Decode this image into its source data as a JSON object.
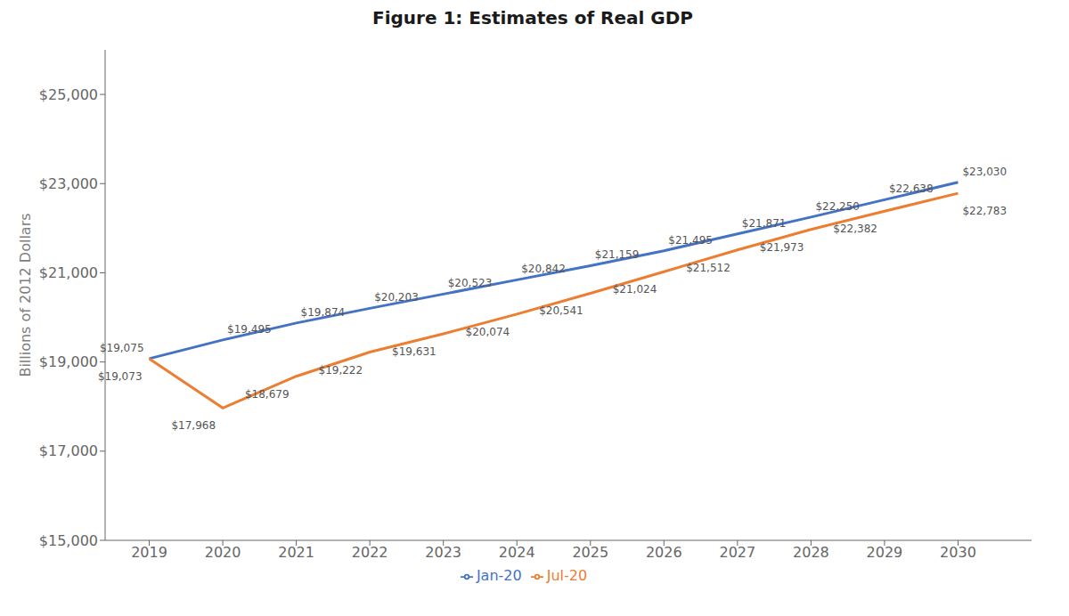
{
  "chart_data": {
    "type": "line",
    "title": "Figure 1: Estimates of Real GDP",
    "ylabel": "Billions of 2012 Dollars",
    "x": [
      2019,
      2020,
      2021,
      2022,
      2023,
      2024,
      2025,
      2026,
      2027,
      2028,
      2029,
      2030
    ],
    "xlim": [
      2018.4,
      2031
    ],
    "xticks": [
      2019,
      2020,
      2021,
      2022,
      2023,
      2024,
      2025,
      2026,
      2027,
      2028,
      2029,
      2030
    ],
    "ylim": [
      15000,
      26000
    ],
    "yticks": [
      {
        "value": 15000,
        "label": "$15,000"
      },
      {
        "value": 17000,
        "label": "$17,000"
      },
      {
        "value": 19000,
        "label": "$19,000"
      },
      {
        "value": 21000,
        "label": "$21,000"
      },
      {
        "value": 23000,
        "label": "$23,000"
      },
      {
        "value": 25000,
        "label": "$25,000"
      }
    ],
    "grid": false,
    "legend": "bottom",
    "data_labels": true,
    "series": [
      {
        "name": "Jan-20",
        "color": "#4472C4",
        "values": [
          19075,
          19495,
          19874,
          20203,
          20523,
          20842,
          21159,
          21495,
          21871,
          22250,
          22638,
          23030
        ],
        "value_labels": [
          "$19,075",
          "$19,495",
          "$19,874",
          "$20,203",
          "$20,523",
          "$20,842",
          "$21,159",
          "$21,495",
          "$21,871",
          "$22,250",
          "$22,638",
          "$23,030"
        ]
      },
      {
        "name": "Jul-20",
        "color": "#ED7D31",
        "values": [
          19073,
          17968,
          18679,
          19222,
          19631,
          20074,
          20541,
          21024,
          21512,
          21973,
          22382,
          22783
        ],
        "value_labels": [
          "$19,073",
          "$17,968",
          "$18,679",
          "$19,222",
          "$19,631",
          "$20,074",
          "$20,541",
          "$21,024",
          "$21,512",
          "$21,973",
          "$22,382",
          "$22,783"
        ]
      }
    ]
  }
}
